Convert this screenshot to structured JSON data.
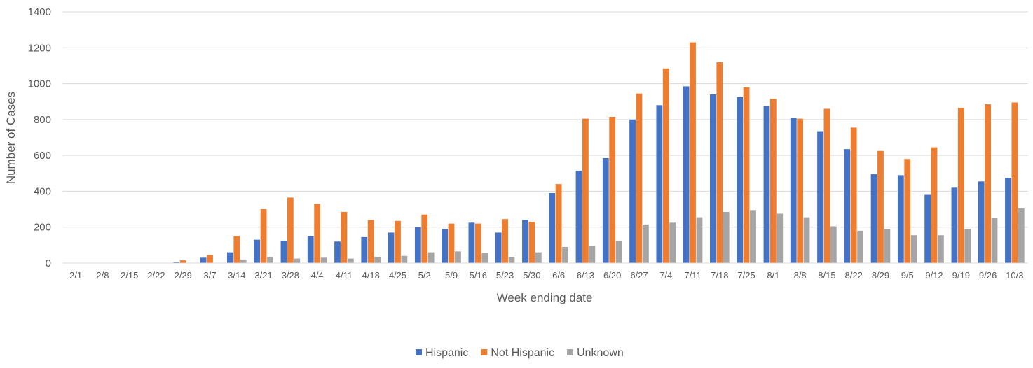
{
  "chart_data": {
    "type": "bar",
    "xlabel": "Week ending date",
    "ylabel": "Number of Cases",
    "ylim": [
      0,
      1400
    ],
    "yticks": [
      "0",
      "200",
      "400",
      "600",
      "800",
      "1000",
      "1200",
      "1400"
    ],
    "grid": true,
    "legend_position": "bottom",
    "categories": [
      "2/1",
      "2/8",
      "2/15",
      "2/22",
      "2/29",
      "3/7",
      "3/14",
      "3/21",
      "3/28",
      "4/4",
      "4/11",
      "4/18",
      "4/25",
      "5/2",
      "5/9",
      "5/16",
      "5/23",
      "5/30",
      "6/6",
      "6/13",
      "6/20",
      "6/27",
      "7/4",
      "7/11",
      "7/18",
      "7/25",
      "8/1",
      "8/8",
      "8/15",
      "8/22",
      "8/29",
      "9/5",
      "9/12",
      "9/19",
      "9/26",
      "10/3"
    ],
    "series": [
      {
        "name": "Hispanic",
        "color": "#4472C4",
        "values": [
          0,
          0,
          0,
          0,
          5,
          30,
          60,
          130,
          125,
          150,
          120,
          145,
          170,
          200,
          190,
          225,
          170,
          240,
          390,
          515,
          585,
          800,
          880,
          985,
          940,
          925,
          875,
          810,
          735,
          635,
          495,
          490,
          380,
          420,
          455,
          475
        ]
      },
      {
        "name": "Not Hispanic",
        "color": "#ED7D31",
        "values": [
          0,
          0,
          0,
          0,
          15,
          45,
          150,
          300,
          365,
          330,
          285,
          240,
          235,
          270,
          220,
          220,
          245,
          230,
          440,
          805,
          815,
          945,
          1085,
          1230,
          1120,
          980,
          915,
          805,
          860,
          755,
          625,
          580,
          645,
          865,
          885,
          895
        ]
      },
      {
        "name": "Unknown",
        "color": "#A5A5A5",
        "values": [
          0,
          0,
          0,
          0,
          0,
          0,
          20,
          35,
          25,
          30,
          25,
          35,
          40,
          60,
          65,
          55,
          35,
          60,
          90,
          95,
          125,
          215,
          225,
          255,
          285,
          295,
          275,
          255,
          205,
          180,
          190,
          155,
          155,
          190,
          250,
          305
        ]
      }
    ]
  }
}
